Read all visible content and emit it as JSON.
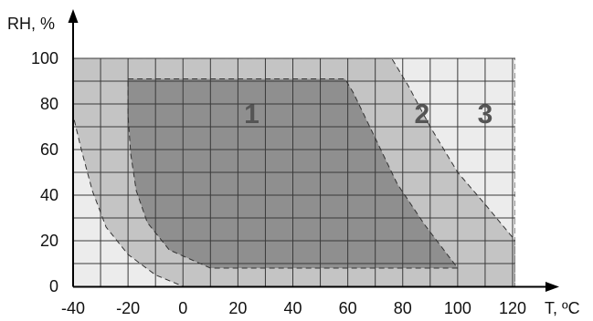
{
  "chart_data": {
    "type": "area",
    "xlabel": "T, ºC",
    "ylabel": "RH, %",
    "xlim": [
      -40,
      120
    ],
    "ylim": [
      0,
      100
    ],
    "x_ticks": [
      -40,
      -20,
      0,
      20,
      40,
      60,
      80,
      100,
      120
    ],
    "y_ticks": [
      0,
      20,
      40,
      60,
      80,
      100
    ],
    "grid": true,
    "colors": {
      "zone1": "#8f8f8f",
      "zone2": "#c4c4c4",
      "zone3": "#ececec",
      "grid": "#3a3a3a"
    },
    "zones": [
      {
        "label": "1",
        "label_at": [
          25,
          76
        ],
        "boundary": [
          [
            -20,
            91
          ],
          [
            59,
            91
          ],
          [
            62,
            85
          ],
          [
            70,
            65
          ],
          [
            78,
            45
          ],
          [
            88,
            27
          ],
          [
            100,
            8
          ],
          [
            10,
            8
          ],
          [
            -5,
            16
          ],
          [
            -13,
            28
          ],
          [
            -17,
            42
          ],
          [
            -19,
            58
          ],
          [
            -20,
            75
          ]
        ]
      },
      {
        "label": "2",
        "label_at": [
          87,
          76
        ],
        "boundary": [
          [
            -40,
            100
          ],
          [
            76,
            100
          ],
          [
            82,
            88
          ],
          [
            90,
            70
          ],
          [
            100,
            50
          ],
          [
            110,
            36
          ],
          [
            121,
            20
          ],
          [
            121,
            0
          ],
          [
            0,
            0
          ],
          [
            -10,
            5
          ],
          [
            -20,
            14
          ],
          [
            -28,
            26
          ],
          [
            -33,
            42
          ],
          [
            -37,
            60
          ],
          [
            -40,
            75
          ]
        ]
      },
      {
        "label": "3",
        "label_at": [
          110,
          76
        ],
        "boundary": [
          [
            -40,
            100
          ],
          [
            121,
            100
          ],
          [
            121,
            0
          ],
          [
            -40,
            0
          ]
        ]
      }
    ]
  }
}
